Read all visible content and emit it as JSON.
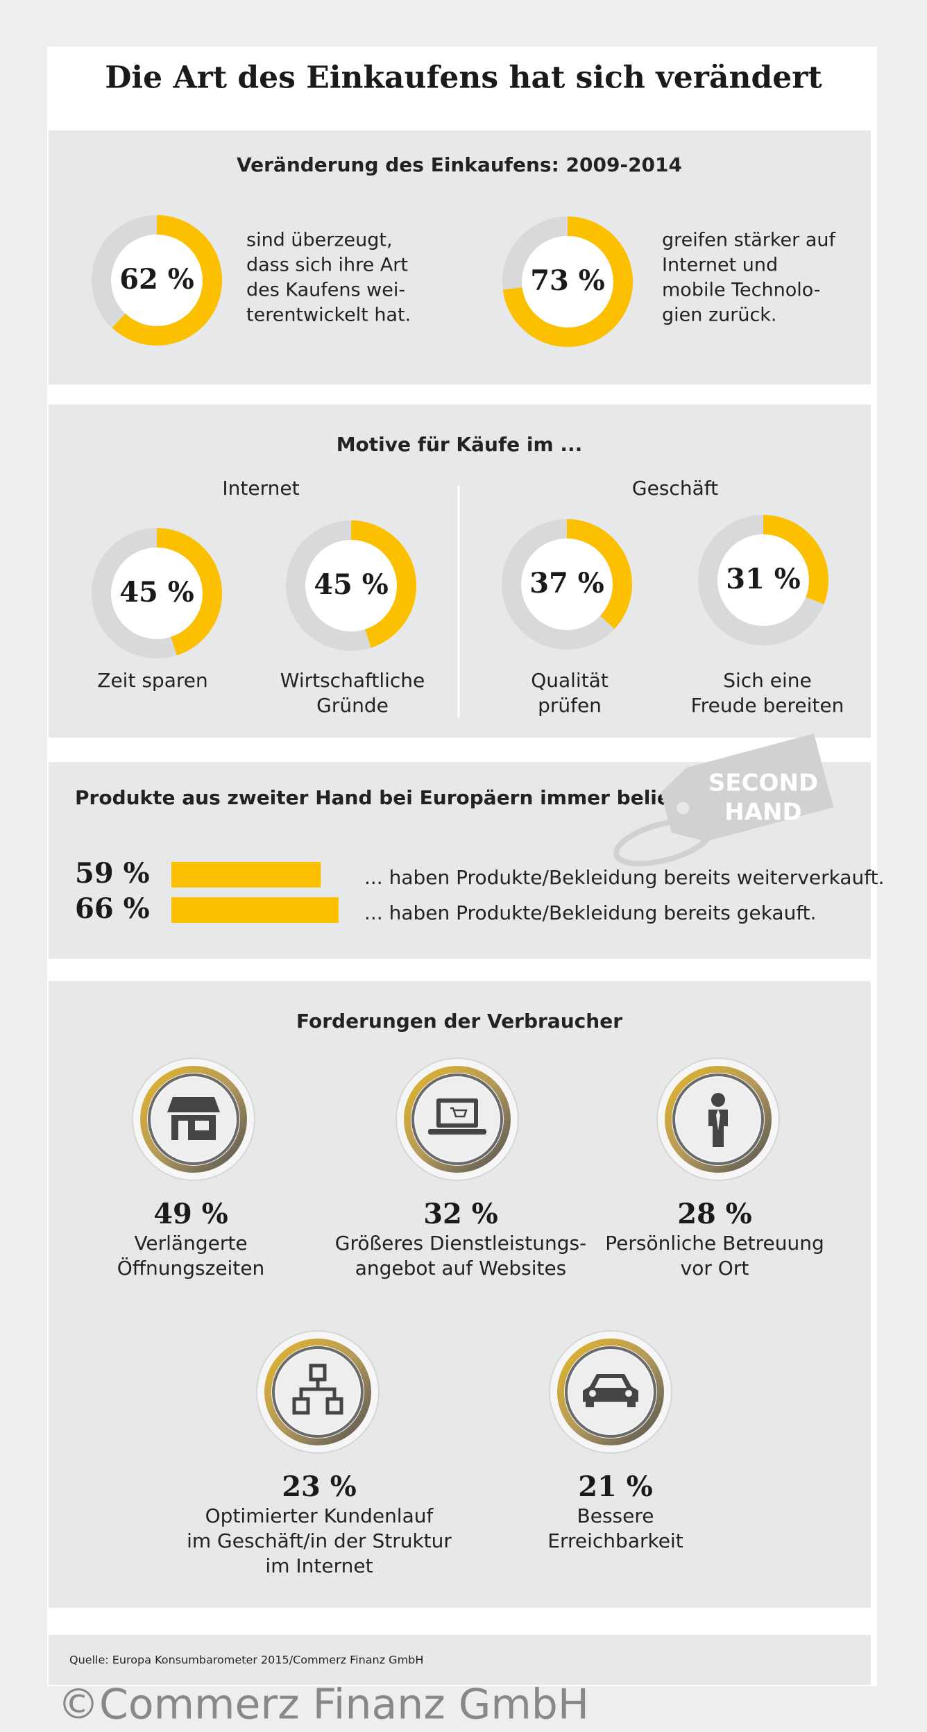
{
  "title": "Die Art des Einkaufens hat sich verändert",
  "accent_color": "#fcc000",
  "ring_color": "#d8d9db",
  "change": {
    "heading": "Veränderung des Einkaufens: 2009-2014",
    "items": [
      {
        "value": 62,
        "label": "62 %",
        "text": [
          "sind überzeugt,",
          "dass sich ihre Art",
          "des Kaufens wei-",
          "terentwickelt hat."
        ]
      },
      {
        "value": 73,
        "label": "73 %",
        "text": [
          "greifen stärker auf",
          "Internet und",
          "mobile Technolo-",
          "gien zurück."
        ]
      }
    ]
  },
  "motives": {
    "heading": "Motive für Käufe im ...",
    "groups": [
      {
        "name": "Internet",
        "items": [
          {
            "value": 45,
            "label": "45 %",
            "text": [
              "Zeit sparen"
            ]
          },
          {
            "value": 45,
            "label": "45 %",
            "text": [
              "Wirtschaftliche",
              "Gründe"
            ]
          }
        ]
      },
      {
        "name": "Geschäft",
        "items": [
          {
            "value": 37,
            "label": "37 %",
            "text": [
              "Qualität",
              "prüfen"
            ]
          },
          {
            "value": 31,
            "label": "31 %",
            "text": [
              "Sich eine",
              "Freude bereiten"
            ]
          }
        ]
      }
    ]
  },
  "second_hand": {
    "heading": "Produkte aus zweiter Hand bei Europäern immer beliebter",
    "tag": [
      "SECOND",
      "HAND"
    ],
    "bars": [
      {
        "value": 59,
        "label": "59 %",
        "text": "... haben Produkte/Bekleidung bereits weiterverkauft."
      },
      {
        "value": 66,
        "label": "66 %",
        "text": "... haben Produkte/Bekleidung bereits gekauft."
      }
    ]
  },
  "demands": {
    "heading": "Forderungen der Verbraucher",
    "items": [
      {
        "value": 49,
        "label": "49 %",
        "text": [
          "Verlängerte",
          "Öffnungszeiten"
        ]
      },
      {
        "value": 32,
        "label": "32 %",
        "text": [
          "Größeres Dienstleistungs-",
          "angebot auf Websites"
        ]
      },
      {
        "value": 28,
        "label": "28 %",
        "text": [
          "Persönliche Betreuung",
          "vor Ort"
        ]
      },
      {
        "value": 23,
        "label": "23 %",
        "text": [
          "Optimierter Kundenlauf",
          "im Geschäft/in der Struktur",
          "im Internet"
        ]
      },
      {
        "value": 21,
        "label": "21 %",
        "text": [
          "Bessere",
          "Erreichbarkeit"
        ]
      }
    ]
  },
  "source": "Quelle: Europa Konsumbarometer 2015/Commerz Finanz GmbH",
  "watermark": "©Commerz Finanz GmbH"
}
